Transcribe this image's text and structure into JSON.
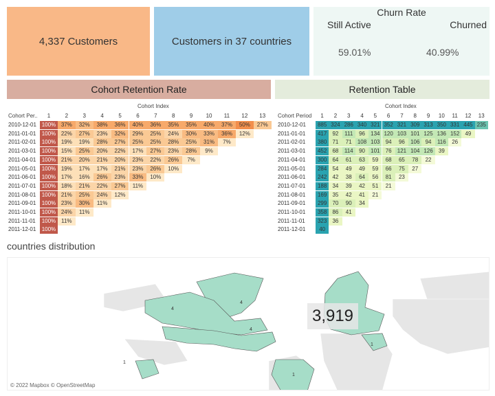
{
  "kpis": {
    "customers": "4,337 Customers",
    "countries": "Customers in 37 countries"
  },
  "churn": {
    "title": "Churn Rate",
    "active_label": "Still Active",
    "churned_label": "Churned",
    "active_value": "59.01%",
    "churned_value": "40.99%"
  },
  "sections": {
    "cohort_title": "Cohort Retention Rate",
    "retention_title": "Retention Table",
    "countries_title": "countries distribution"
  },
  "colors": {
    "customers_tile": "#f9b887",
    "countries_tile": "#9fcde8",
    "churn_tile": "#eef7f4",
    "cohort_header": "#d8ada0",
    "retention_header": "#e4ecdc",
    "land_customers": "#a6ddc8",
    "land_other": "#e6e6e6"
  },
  "cohort_table": {
    "index_caption": "Cohort Index",
    "period_caption": "Cohort Per..",
    "indices": [
      "1",
      "2",
      "3",
      "4",
      "5",
      "6",
      "7",
      "8",
      "9",
      "10",
      "11",
      "12",
      "13"
    ],
    "rows": [
      {
        "period": "2010-12-01",
        "values": [
          "100%",
          "37%",
          "32%",
          "38%",
          "36%",
          "40%",
          "36%",
          "35%",
          "35%",
          "40%",
          "37%",
          "50%",
          "27%"
        ]
      },
      {
        "period": "2011-01-01",
        "values": [
          "100%",
          "22%",
          "27%",
          "23%",
          "32%",
          "29%",
          "25%",
          "24%",
          "30%",
          "33%",
          "36%",
          "12%"
        ]
      },
      {
        "period": "2011-02-01",
        "values": [
          "100%",
          "19%",
          "19%",
          "28%",
          "27%",
          "25%",
          "25%",
          "28%",
          "25%",
          "31%",
          "7%"
        ]
      },
      {
        "period": "2011-03-01",
        "values": [
          "100%",
          "15%",
          "25%",
          "20%",
          "22%",
          "17%",
          "27%",
          "23%",
          "28%",
          "9%"
        ]
      },
      {
        "period": "2011-04-01",
        "values": [
          "100%",
          "21%",
          "20%",
          "21%",
          "20%",
          "23%",
          "22%",
          "26%",
          "7%"
        ]
      },
      {
        "period": "2011-05-01",
        "values": [
          "100%",
          "19%",
          "17%",
          "17%",
          "21%",
          "23%",
          "26%",
          "10%"
        ]
      },
      {
        "period": "2011-06-01",
        "values": [
          "100%",
          "17%",
          "16%",
          "26%",
          "23%",
          "33%",
          "10%"
        ]
      },
      {
        "period": "2011-07-01",
        "values": [
          "100%",
          "18%",
          "21%",
          "22%",
          "27%",
          "11%"
        ]
      },
      {
        "period": "2011-08-01",
        "values": [
          "100%",
          "21%",
          "25%",
          "24%",
          "12%"
        ]
      },
      {
        "period": "2011-09-01",
        "values": [
          "100%",
          "23%",
          "30%",
          "11%"
        ]
      },
      {
        "period": "2011-10-01",
        "values": [
          "100%",
          "24%",
          "11%"
        ]
      },
      {
        "period": "2011-11-01",
        "values": [
          "100%",
          "11%"
        ]
      },
      {
        "period": "2011-12-01",
        "values": [
          "100%"
        ]
      }
    ]
  },
  "retention_table": {
    "index_caption": "Cohort Index",
    "period_caption": "Cohort Period",
    "indices": [
      "1",
      "2",
      "3",
      "4",
      "5",
      "6",
      "7",
      "8",
      "9",
      "10",
      "11",
      "12",
      "13"
    ],
    "rows": [
      {
        "period": "2010-12-01",
        "values": [
          "885",
          "324",
          "286",
          "340",
          "321",
          "352",
          "321",
          "309",
          "313",
          "350",
          "331",
          "445",
          "235"
        ]
      },
      {
        "period": "2011-01-01",
        "values": [
          "417",
          "92",
          "111",
          "96",
          "134",
          "120",
          "103",
          "101",
          "125",
          "136",
          "152",
          "49"
        ]
      },
      {
        "period": "2011-02-01",
        "values": [
          "380",
          "71",
          "71",
          "108",
          "103",
          "94",
          "96",
          "106",
          "94",
          "116",
          "26"
        ]
      },
      {
        "period": "2011-03-01",
        "values": [
          "452",
          "68",
          "114",
          "90",
          "101",
          "76",
          "121",
          "104",
          "126",
          "39"
        ]
      },
      {
        "period": "2011-04-01",
        "values": [
          "300",
          "64",
          "61",
          "63",
          "59",
          "68",
          "65",
          "78",
          "22"
        ]
      },
      {
        "period": "2011-05-01",
        "values": [
          "284",
          "54",
          "49",
          "49",
          "59",
          "66",
          "75",
          "27"
        ]
      },
      {
        "period": "2011-06-01",
        "values": [
          "242",
          "42",
          "38",
          "64",
          "56",
          "81",
          "23"
        ]
      },
      {
        "period": "2011-07-01",
        "values": [
          "188",
          "34",
          "39",
          "42",
          "51",
          "21"
        ]
      },
      {
        "period": "2011-08-01",
        "values": [
          "169",
          "35",
          "42",
          "41",
          "21"
        ]
      },
      {
        "period": "2011-09-01",
        "values": [
          "299",
          "70",
          "90",
          "34"
        ]
      },
      {
        "period": "2011-10-01",
        "values": [
          "358",
          "86",
          "41"
        ]
      },
      {
        "period": "2011-11-01",
        "values": [
          "323",
          "36"
        ]
      },
      {
        "period": "2011-12-01",
        "values": [
          "40"
        ]
      }
    ]
  },
  "map": {
    "tooltip_value": "3,919",
    "credit": "© 2022 Mapbox © OpenStreetMap",
    "labels": [
      {
        "name": "greenland",
        "text": "4"
      },
      {
        "name": "canada",
        "text": "4"
      },
      {
        "name": "usa",
        "text": "4"
      },
      {
        "name": "mexico-area",
        "text": "1"
      },
      {
        "name": "brazil",
        "text": "1"
      },
      {
        "name": "middle-east",
        "text": "1"
      }
    ]
  }
}
